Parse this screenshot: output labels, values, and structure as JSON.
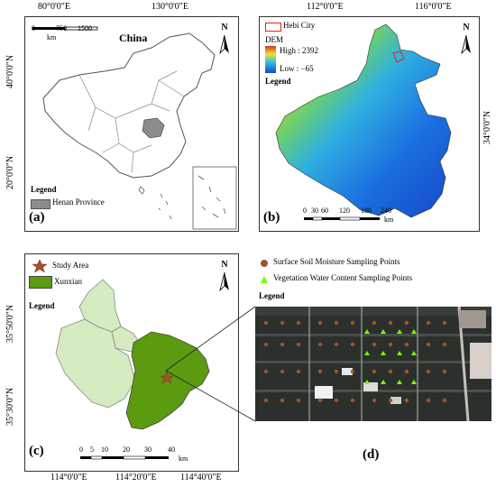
{
  "panel_a": {
    "label": "(a)",
    "title": "China",
    "top_coords": [
      "80°0'0\"E",
      "130°0'0\"E"
    ],
    "left_coords": [
      "40°0'0\"N",
      "20°0'0\"N"
    ],
    "scale_ticks": [
      "0",
      "750",
      "1500"
    ],
    "scale_unit": "km",
    "legend_title": "Legend",
    "legend_item": "Henan Province",
    "north": "N",
    "colors": {
      "henan": "#8c8c8c",
      "border": "#555555"
    }
  },
  "panel_b": {
    "label": "(b)",
    "top_coords": [
      "112°0'0\"E",
      "116°0'0\"E"
    ],
    "right_coord": "34°0'0\"N",
    "hebi_label": "Hebi City",
    "dem_label": "DEM",
    "high_label": "High : 2392",
    "low_label": "Low : −65",
    "legend_title": "Legend",
    "scale_ticks": [
      "0",
      "30",
      "60",
      "120",
      "180",
      "240"
    ],
    "scale_unit": "km",
    "north": "N",
    "dem_range": {
      "low": -65,
      "high": 2392
    }
  },
  "panel_c": {
    "label": "(c)",
    "legend_items": [
      "Study Area",
      "Xunxian"
    ],
    "legend_title": "Legend",
    "left_coords": [
      "35°50'0\"N",
      "35°30'0\"N"
    ],
    "bottom_coords": [
      "114°0'0\"E",
      "114°20'0\"E",
      "114°40'0\"E"
    ],
    "scale_ticks": [
      "0",
      "5",
      "10",
      "20",
      "30",
      "40"
    ],
    "scale_unit": "km",
    "north": "N",
    "colors": {
      "xunxian": "#5c9a10",
      "hebi": "#d4ecc0",
      "star": "#a0522d"
    }
  },
  "panel_d": {
    "label": "(d)",
    "legend_items": [
      "Surface Soil Moisture Sampling Points",
      "Vegetation Water Content Sampling Points"
    ],
    "legend_title": "Legend",
    "colors": {
      "soil": "#a0522d",
      "veg": "#7cfc00"
    }
  }
}
